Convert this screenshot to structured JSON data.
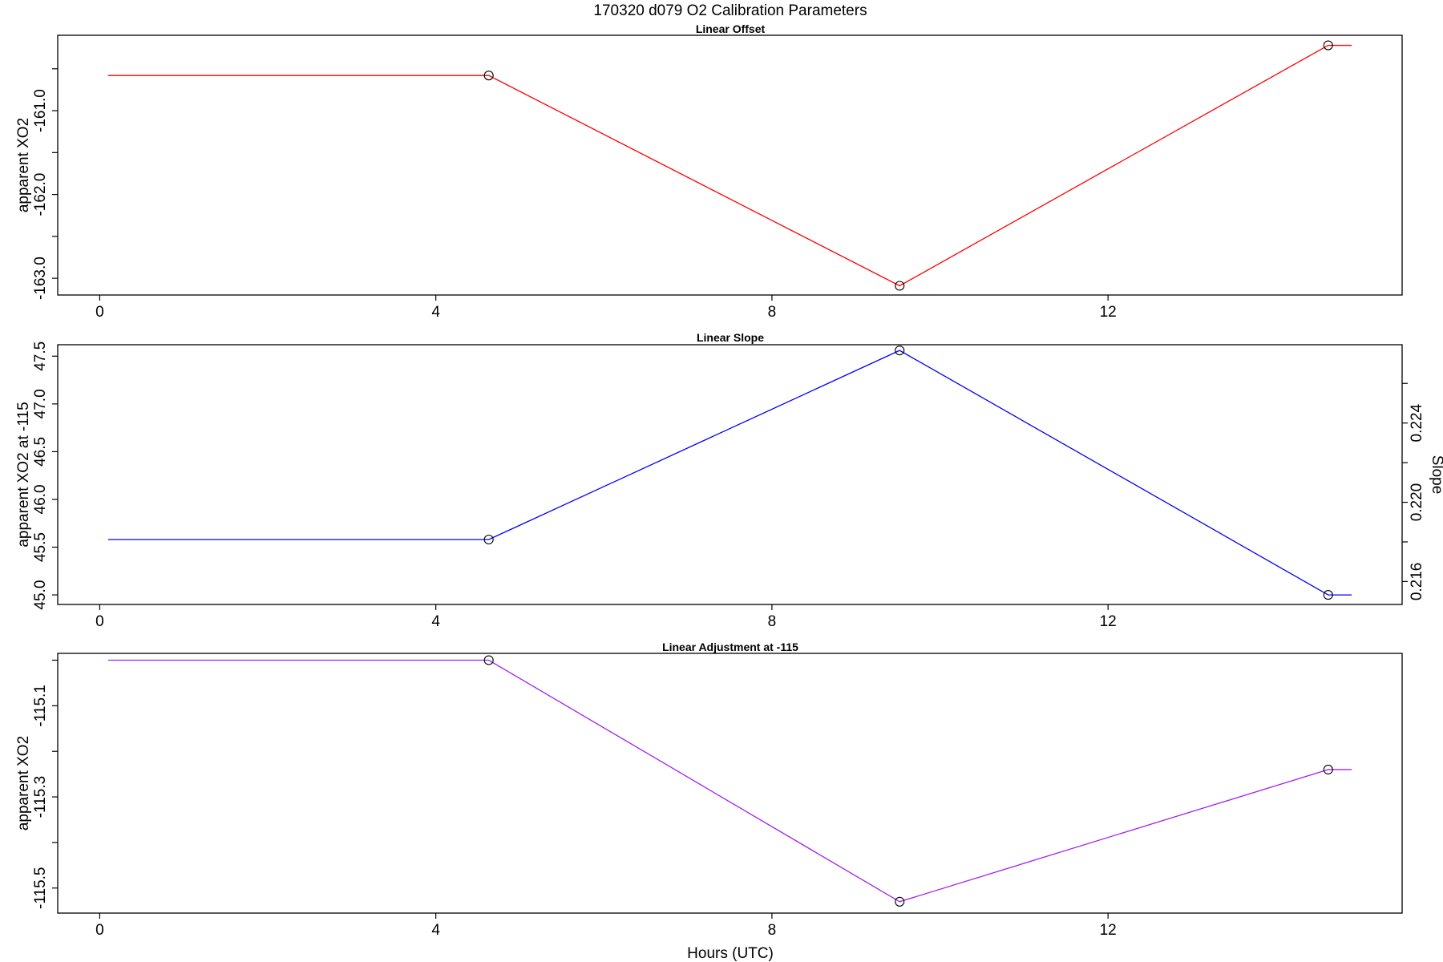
{
  "title": "170320   d079   O2 Calibration Parameters",
  "chart_data": [
    {
      "type": "line",
      "title": "Linear Offset",
      "xlabel": "",
      "ylabel": "apparent XO2",
      "color": "#ff0000",
      "x": [
        0.1,
        4.63,
        9.52,
        14.62,
        14.9
      ],
      "y": [
        -160.58,
        -160.58,
        -163.09,
        -160.22,
        -160.22
      ],
      "marker_x": [
        4.63,
        9.52,
        14.62
      ],
      "marker_y": [
        -160.58,
        -163.09,
        -160.22
      ],
      "xlim": [
        -0.5,
        15.5
      ],
      "ylim": [
        -163.2,
        -160.1
      ],
      "xticks": [
        0,
        4,
        8,
        12
      ],
      "xtick_labels": [
        "0",
        "4",
        "8",
        "12"
      ],
      "yticks": [
        -163.0,
        -162.5,
        -162.0,
        -161.5,
        -161.0,
        -160.5
      ],
      "ytick_labels": [
        "-163.0",
        "",
        "-162.0",
        "",
        "-161.0",
        ""
      ]
    },
    {
      "type": "line",
      "title": "Linear Slope",
      "xlabel": "",
      "ylabel": "apparent XO2 at -115",
      "y2label": "Slope",
      "color": "#0000ff",
      "x": [
        0.1,
        4.63,
        9.52,
        14.62,
        14.9
      ],
      "y": [
        45.58,
        45.58,
        47.56,
        45.0,
        45.0
      ],
      "marker_x": [
        4.63,
        9.52,
        14.62
      ],
      "marker_y": [
        45.58,
        47.56,
        45.0
      ],
      "xlim": [
        -0.5,
        15.5
      ],
      "ylim": [
        44.9,
        47.62
      ],
      "xticks": [
        0,
        4,
        8,
        12
      ],
      "xtick_labels": [
        "0",
        "4",
        "8",
        "12"
      ],
      "yticks": [
        45.0,
        45.5,
        46.0,
        46.5,
        47.0,
        47.5
      ],
      "ytick_labels": [
        "45.0",
        "45.5",
        "46.0",
        "46.5",
        "47.0",
        "47.5"
      ],
      "y2ticks": [
        0.216,
        0.218,
        0.22,
        0.222,
        0.224,
        0.226
      ],
      "y2tick_labels": [
        "0.216",
        "",
        "0.220",
        "",
        "0.224",
        ""
      ],
      "y2_at_y": [
        [
          0.216,
          45.14
        ],
        [
          0.224,
          46.8
        ]
      ]
    },
    {
      "type": "line",
      "title": "Linear Adjustment at -115",
      "xlabel": "Hours (UTC)",
      "ylabel": "apparent XO2",
      "color": "#a020f0",
      "x": [
        0.1,
        4.63,
        9.52,
        14.62,
        14.9
      ],
      "y": [
        -115.0,
        -115.0,
        -115.53,
        -115.24,
        -115.24
      ],
      "marker_x": [
        4.63,
        9.52,
        14.62
      ],
      "marker_y": [
        -115.0,
        -115.53,
        -115.24
      ],
      "xlim": [
        -0.5,
        15.5
      ],
      "ylim": [
        -115.555,
        -114.985
      ],
      "xticks": [
        0,
        4,
        8,
        12
      ],
      "xtick_labels": [
        "0",
        "4",
        "8",
        "12"
      ],
      "yticks": [
        -115.5,
        -115.4,
        -115.3,
        -115.2,
        -115.1,
        -115.0
      ],
      "ytick_labels": [
        "-115.5",
        "",
        "-115.3",
        "",
        "-115.1",
        ""
      ]
    }
  ]
}
